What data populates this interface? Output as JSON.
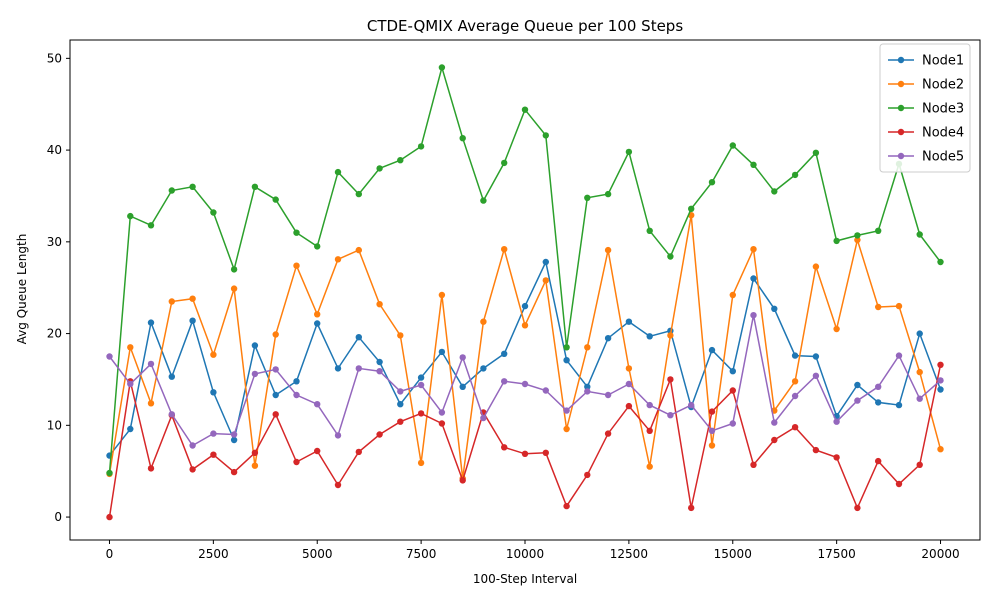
{
  "chart_data": {
    "type": "line",
    "title": "CTDE-QMIX Average Queue per 100 Steps",
    "xlabel": "100-Step Interval",
    "ylabel": "Avg Queue Length",
    "xlim": [
      -950,
      20950
    ],
    "ylim": [
      -2.5,
      52
    ],
    "x_ticks": [
      0,
      2500,
      5000,
      7500,
      10000,
      12500,
      15000,
      17500,
      20000
    ],
    "y_ticks": [
      0,
      10,
      20,
      30,
      40,
      50
    ],
    "grid": false,
    "legend_position": "top-right",
    "marker": "circle",
    "x": [
      0,
      500,
      1000,
      1500,
      2000,
      2500,
      3000,
      3500,
      4000,
      4500,
      5000,
      5500,
      6000,
      6500,
      7000,
      7500,
      8000,
      8500,
      9000,
      9500,
      10000,
      10500,
      11000,
      11500,
      12000,
      12500,
      13000,
      13500,
      14000,
      14500,
      15000,
      15500,
      16000,
      16500,
      17000,
      17500,
      18000,
      18500,
      19000,
      19500,
      20000
    ],
    "series": [
      {
        "name": "Node1",
        "color": "#1f77b4",
        "values": [
          6.7,
          9.6,
          21.2,
          15.3,
          21.4,
          13.6,
          8.4,
          18.7,
          13.3,
          14.8,
          21.1,
          16.2,
          19.6,
          16.9,
          12.3,
          15.2,
          18.0,
          14.2,
          16.2,
          17.8,
          23.0,
          27.8,
          17.1,
          14.2,
          19.5,
          21.3,
          19.7,
          20.3,
          12.0,
          18.2,
          15.9,
          26.0,
          22.7,
          17.6,
          17.5,
          11.0,
          14.4,
          12.5,
          12.2,
          20.0,
          13.9
        ]
      },
      {
        "name": "Node2",
        "color": "#ff7f0e",
        "values": [
          4.7,
          18.5,
          12.4,
          23.5,
          23.8,
          17.7,
          24.9,
          5.6,
          19.9,
          27.4,
          22.1,
          28.1,
          29.1,
          23.2,
          19.8,
          5.9,
          24.2,
          4.2,
          21.3,
          29.2,
          20.9,
          25.8,
          9.6,
          18.5,
          29.1,
          16.2,
          5.5,
          19.8,
          32.9,
          7.8,
          24.2,
          29.2,
          11.6,
          14.8,
          27.3,
          20.5,
          30.2,
          22.9,
          23.0,
          15.8,
          7.4
        ]
      },
      {
        "name": "Node3",
        "color": "#2ca02c",
        "values": [
          4.8,
          32.8,
          31.8,
          35.6,
          36.0,
          33.2,
          27.0,
          36.0,
          34.6,
          31.0,
          29.5,
          37.6,
          35.2,
          38.0,
          38.9,
          40.4,
          49.0,
          41.3,
          34.5,
          38.6,
          44.4,
          41.6,
          18.5,
          34.8,
          35.2,
          39.8,
          31.2,
          28.4,
          33.6,
          36.5,
          40.5,
          38.4,
          35.5,
          37.3,
          39.7,
          30.1,
          30.7,
          31.2,
          38.5,
          30.8,
          27.8
        ]
      },
      {
        "name": "Node4",
        "color": "#d62728",
        "values": [
          0.0,
          14.8,
          5.3,
          11.1,
          5.2,
          6.8,
          4.9,
          7.0,
          11.2,
          6.0,
          7.2,
          3.5,
          7.1,
          9.0,
          10.4,
          11.3,
          10.2,
          4.0,
          11.4,
          7.6,
          6.9,
          7.0,
          1.2,
          4.6,
          9.1,
          12.1,
          9.4,
          15.0,
          1.0,
          11.5,
          13.8,
          5.7,
          8.4,
          9.8,
          7.3,
          6.5,
          1.0,
          6.1,
          3.6,
          5.7,
          16.6
        ]
      },
      {
        "name": "Node5",
        "color": "#9467bd",
        "values": [
          17.5,
          14.5,
          16.7,
          11.2,
          7.8,
          9.1,
          9.0,
          15.6,
          16.1,
          13.3,
          12.3,
          8.9,
          16.2,
          15.9,
          13.7,
          14.4,
          11.4,
          17.4,
          10.8,
          14.8,
          14.5,
          13.8,
          11.6,
          13.7,
          13.3,
          14.5,
          12.2,
          11.1,
          12.2,
          9.4,
          10.2,
          22.0,
          10.3,
          13.2,
          15.4,
          10.4,
          12.7,
          14.2,
          17.6,
          12.9,
          14.9
        ]
      }
    ]
  }
}
